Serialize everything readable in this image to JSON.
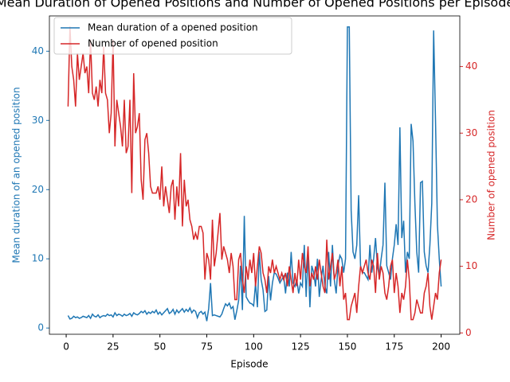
{
  "chart_data": {
    "type": "line",
    "title": "Mean Duration of Opened Positions and Number of Opened Positions per Episode",
    "xlabel": "Episode",
    "ylabel": "Mean duration of an opened position",
    "y2label": "Number of opened position",
    "x": [
      1,
      2,
      3,
      4,
      5,
      6,
      7,
      8,
      9,
      10,
      11,
      12,
      13,
      14,
      15,
      16,
      17,
      18,
      19,
      20,
      21,
      22,
      23,
      24,
      25,
      26,
      27,
      28,
      29,
      30,
      31,
      32,
      33,
      34,
      35,
      36,
      37,
      38,
      39,
      40,
      41,
      42,
      43,
      44,
      45,
      46,
      47,
      48,
      49,
      50,
      51,
      52,
      53,
      54,
      55,
      56,
      57,
      58,
      59,
      60,
      61,
      62,
      63,
      64,
      65,
      66,
      67,
      68,
      69,
      70,
      71,
      72,
      73,
      74,
      75,
      76,
      77,
      78,
      79,
      80,
      81,
      82,
      83,
      84,
      85,
      86,
      87,
      88,
      89,
      90,
      91,
      92,
      93,
      94,
      95,
      96,
      97,
      98,
      99,
      100,
      101,
      102,
      103,
      104,
      105,
      106,
      107,
      108,
      109,
      110,
      111,
      112,
      113,
      114,
      115,
      116,
      117,
      118,
      119,
      120,
      121,
      122,
      123,
      124,
      125,
      126,
      127,
      128,
      129,
      130,
      131,
      132,
      133,
      134,
      135,
      136,
      137,
      138,
      139,
      140,
      141,
      142,
      143,
      144,
      145,
      146,
      147,
      148,
      149,
      150,
      151,
      152,
      153,
      154,
      155,
      156,
      157,
      158,
      159,
      160,
      161,
      162,
      163,
      164,
      165,
      166,
      167,
      168,
      169,
      170,
      171,
      172,
      173,
      174,
      175,
      176,
      177,
      178,
      179,
      180,
      181,
      182,
      183,
      184,
      185,
      186,
      187,
      188,
      189,
      190,
      191,
      192,
      193,
      194,
      195,
      196,
      197,
      198,
      199,
      200
    ],
    "series": [
      {
        "name": "Mean duration of a opened position",
        "color": "#1f77b4",
        "axis": "y",
        "values": [
          1.8,
          1.3,
          1.4,
          1.7,
          1.5,
          1.6,
          1.4,
          1.5,
          1.7,
          1.6,
          1.5,
          1.8,
          1.4,
          2.0,
          1.7,
          1.6,
          1.9,
          1.5,
          1.7,
          1.8,
          1.7,
          2.0,
          1.8,
          1.9,
          1.6,
          2.2,
          1.8,
          2.0,
          1.9,
          1.7,
          2.0,
          1.8,
          1.9,
          2.1,
          1.7,
          2.2,
          2.0,
          1.9,
          2.1,
          2.4,
          2.2,
          2.5,
          2.0,
          2.3,
          2.1,
          2.4,
          2.2,
          2.6,
          2.0,
          2.3,
          1.9,
          2.2,
          2.5,
          2.8,
          2.1,
          2.3,
          2.7,
          2.0,
          2.6,
          2.2,
          2.5,
          2.8,
          2.3,
          2.7,
          2.4,
          2.9,
          2.2,
          2.6,
          2.4,
          1.5,
          2.2,
          2.4,
          2.0,
          2.3,
          1.0,
          2.8,
          6.5,
          1.8,
          1.9,
          1.8,
          1.7,
          1.6,
          2.0,
          2.8,
          3.5,
          3.2,
          3.6,
          2.8,
          3.1,
          1.2,
          2.5,
          4.0,
          9.0,
          2.6,
          16.2,
          4.5,
          4.0,
          3.6,
          3.5,
          3.2,
          6.5,
          3.0,
          11.0,
          7.0,
          5.5,
          2.4,
          2.6,
          7.5,
          4.0,
          6.5,
          8.0,
          7.8,
          7.2,
          6.5,
          7.0,
          7.5,
          5.0,
          8.0,
          6.0,
          11.0,
          6.5,
          6.0,
          7.0,
          5.0,
          6.5,
          6.0,
          12.0,
          4.5,
          11.0,
          3.0,
          9.0,
          8.0,
          6.0,
          10.0,
          4.5,
          7.0,
          9.0,
          6.0,
          5.0,
          11.0,
          6.0,
          12.0,
          7.0,
          5.0,
          9.0,
          10.5,
          10.0,
          8.0,
          10.0,
          43.5,
          43.5,
          17.0,
          11.0,
          10.0,
          12.0,
          19.2,
          9.0,
          8.0,
          8.0,
          7.5,
          7.0,
          12.0,
          8.0,
          10.0,
          13.0,
          9.0,
          7.5,
          10.0,
          12.0,
          21.0,
          9.0,
          8.0,
          7.0,
          10.0,
          12.0,
          15.0,
          12.0,
          29.0,
          13.0,
          15.5,
          8.0,
          11.0,
          10.0,
          29.5,
          27.0,
          18.0,
          11.0,
          8.0,
          21.0,
          21.2,
          11.0,
          9.0,
          8.0,
          12.0,
          18.0,
          43.0,
          30.0,
          15.0,
          10.0,
          6.0
        ]
      },
      {
        "name": "Number of opened position",
        "color": "#d62728",
        "axis": "y2",
        "values": [
          34,
          46,
          40,
          38,
          34,
          42,
          38,
          40,
          42,
          39,
          40,
          36,
          44,
          36,
          35,
          37,
          34,
          38,
          36,
          43,
          36,
          35,
          30,
          33,
          44,
          28,
          35,
          33,
          31,
          28,
          35,
          27,
          28,
          35,
          21,
          39,
          30,
          31,
          33,
          23,
          20,
          29,
          30,
          27,
          22,
          21,
          21,
          21,
          22,
          20,
          25,
          19,
          22,
          20,
          18,
          22,
          23,
          17,
          22,
          19,
          27,
          16,
          23,
          19,
          20,
          17,
          16,
          14,
          15,
          14,
          16,
          16,
          15,
          8,
          12,
          11,
          8,
          17,
          10,
          12,
          15,
          18,
          11,
          13,
          12,
          11,
          9,
          12,
          10,
          5,
          5,
          11,
          12,
          8,
          6,
          10,
          8,
          11,
          9,
          12,
          7,
          10,
          13,
          12,
          9,
          8,
          6,
          10,
          9,
          11,
          9,
          10,
          9,
          8,
          9,
          8,
          9,
          7,
          10,
          8,
          6,
          9,
          7,
          11,
          8,
          12,
          10,
          9,
          13,
          7,
          9,
          8,
          10,
          8,
          11,
          9,
          7,
          6,
          14,
          8,
          10,
          12,
          8,
          9,
          11,
          7,
          10,
          5,
          6,
          2,
          2,
          4,
          5,
          6,
          3,
          7,
          10,
          9,
          10,
          11,
          9,
          8,
          11,
          10,
          6,
          12,
          8,
          10,
          9,
          6,
          5,
          7,
          10,
          11,
          6,
          9,
          7,
          3,
          6,
          5,
          7,
          11,
          8,
          2,
          2,
          3,
          5,
          4,
          3,
          3,
          6,
          7,
          9,
          4,
          2,
          4,
          6,
          5,
          9,
          11
        ]
      }
    ],
    "xlim": [
      -8.95,
      209.95
    ],
    "xticks": [
      0,
      25,
      50,
      75,
      100,
      125,
      150,
      175,
      200
    ],
    "ylim": [
      -0.9,
      45.1
    ],
    "yticks": [
      0,
      10,
      20,
      30,
      40
    ],
    "y2lim": [
      -0.2,
      47.6
    ],
    "y2ticks": [
      0,
      10,
      20,
      30,
      40
    ],
    "legend": "upper left"
  }
}
